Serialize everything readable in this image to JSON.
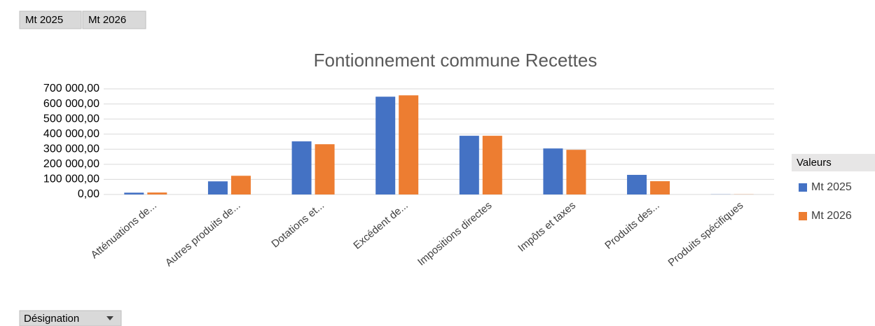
{
  "chart_data": {
    "type": "bar",
    "title": "Fontionnement commune Recettes",
    "categories": [
      "Atténuations de...",
      "Autres produits de...",
      "Dotations et...",
      "Excédent de...",
      "Impositions directes",
      "Impôts et taxes",
      "Produits des...",
      "Produits spécifiques"
    ],
    "series": [
      {
        "name": "Mt 2025",
        "color": "#4472c4",
        "values": [
          12000,
          87000,
          352000,
          648000,
          389000,
          305000,
          130000,
          1000
        ]
      },
      {
        "name": "Mt 2026",
        "color": "#ed7d31",
        "values": [
          13000,
          124000,
          333000,
          657000,
          389000,
          296000,
          88000,
          1000
        ]
      }
    ],
    "ylim": [
      0,
      700000
    ],
    "yticks": [
      {
        "value": 0,
        "label": "0,00"
      },
      {
        "value": 100000,
        "label": "100 000,00"
      },
      {
        "value": 200000,
        "label": "200 000,00"
      },
      {
        "value": 300000,
        "label": "300 000,00"
      },
      {
        "value": 400000,
        "label": "400 000,00"
      },
      {
        "value": 500000,
        "label": "500 000,00"
      },
      {
        "value": 600000,
        "label": "600 000,00"
      },
      {
        "value": 700000,
        "label": "700 000,00"
      }
    ],
    "grid": true,
    "legend_title": "Valeurs",
    "legend_position": "right",
    "axis_field": "Désignation"
  }
}
